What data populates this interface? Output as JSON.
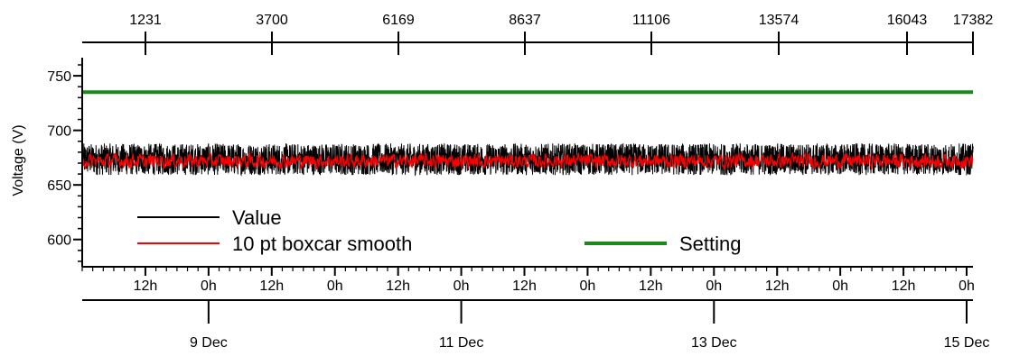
{
  "chart_data": {
    "type": "line",
    "ylabel": "Voltage (V)",
    "ylim": [
      575,
      760
    ],
    "y_ticks": [
      600,
      650,
      700,
      750
    ],
    "x_domain_days": [
      0,
      7.05
    ],
    "top_axis": {
      "ticks": [
        "1231",
        "3700",
        "6169",
        "8637",
        "11106",
        "13574",
        "16043",
        "17382"
      ]
    },
    "time_axis": {
      "ticks": [
        "12h",
        "0h",
        "12h",
        "0h",
        "12h",
        "0h",
        "12h",
        "0h",
        "12h",
        "0h",
        "12h",
        "0h",
        "12h",
        "0h"
      ]
    },
    "date_axis": {
      "ticks": [
        "9 Dec",
        "11 Dec",
        "13 Dec",
        "15 Dec"
      ]
    },
    "series": [
      {
        "name": "Value",
        "color": "#000000",
        "band": [
          659,
          688
        ],
        "center": 672
      },
      {
        "name": "10 pt boxcar smooth",
        "color": "#ff0000",
        "band": [
          662,
          682
        ],
        "center": 672
      },
      {
        "name": "Setting",
        "color": "#1a8a1a",
        "value": 735
      }
    ]
  }
}
